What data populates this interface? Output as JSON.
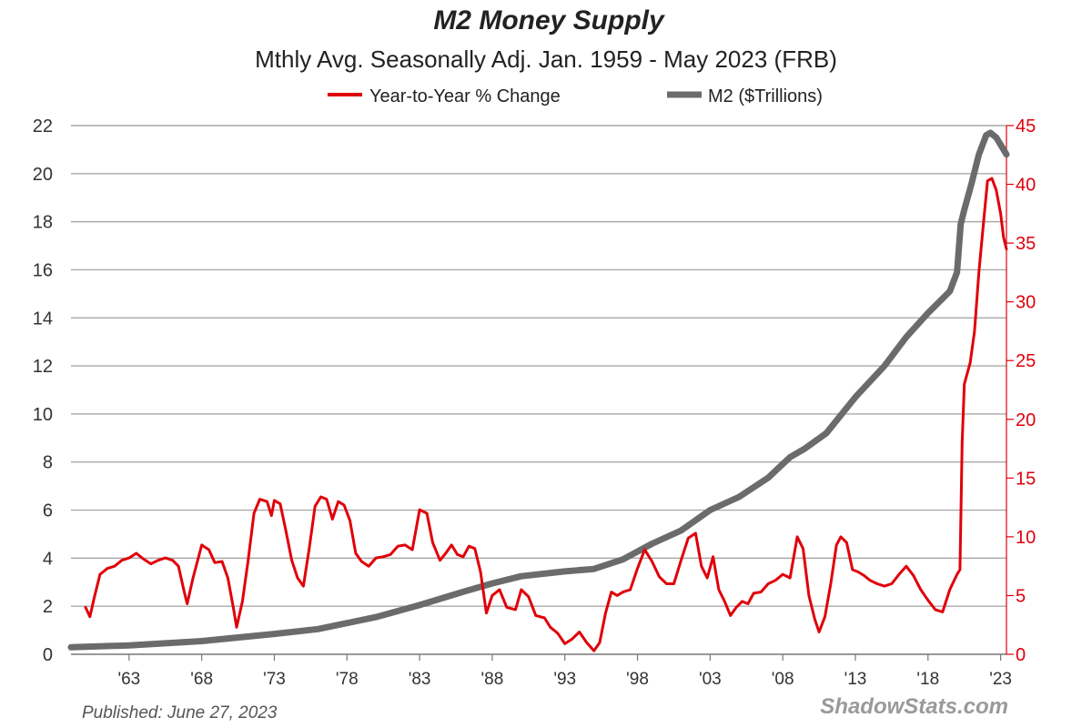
{
  "chart_data": {
    "type": "line",
    "title": "M2 Money Supply",
    "subtitle": "Mthly Avg. Seasonally Adj. Jan. 1959 - May 2023  (FRB)",
    "legend": {
      "placement": "top-center",
      "entries": [
        "Year-to-Year % Change",
        "M2 ($Trillions)"
      ]
    },
    "grid": true,
    "x_tick_labels": [
      "'63",
      "'68",
      "'73",
      "'78",
      "'83",
      "'88",
      "'93",
      "'98",
      "'03",
      "'08",
      "'13",
      "'18",
      "'23"
    ],
    "x_tick_years": [
      1963,
      1968,
      1973,
      1978,
      1983,
      1988,
      1993,
      1998,
      2003,
      2008,
      2013,
      2018,
      2023
    ],
    "xlim": [
      1959.0,
      2023.4
    ],
    "left_axis": {
      "ylim": [
        0,
        22
      ],
      "ticks": [
        "0",
        "2",
        "4",
        "6",
        "8",
        "10",
        "12",
        "14",
        "16",
        "18",
        "20",
        "22"
      ]
    },
    "right_axis": {
      "ylim": [
        0,
        45
      ],
      "ticks": [
        "0",
        "5",
        "10",
        "15",
        "20",
        "25",
        "30",
        "35",
        "40",
        "45"
      ],
      "color": "#e0000a"
    },
    "series": [
      {
        "name": "Year-to-Year % Change",
        "axis": "right",
        "color": "#e0000a",
        "points": [
          [
            1960.0,
            4.0
          ],
          [
            1960.3,
            3.2
          ],
          [
            1960.6,
            4.8
          ],
          [
            1961.0,
            6.8
          ],
          [
            1961.5,
            7.3
          ],
          [
            1962.0,
            7.5
          ],
          [
            1962.5,
            8.0
          ],
          [
            1963.0,
            8.2
          ],
          [
            1963.5,
            8.6
          ],
          [
            1964.0,
            8.1
          ],
          [
            1964.5,
            7.7
          ],
          [
            1965.0,
            8.0
          ],
          [
            1965.5,
            8.2
          ],
          [
            1966.0,
            8.0
          ],
          [
            1966.4,
            7.5
          ],
          [
            1966.8,
            5.3
          ],
          [
            1967.0,
            4.3
          ],
          [
            1967.4,
            6.5
          ],
          [
            1968.0,
            9.3
          ],
          [
            1968.5,
            8.9
          ],
          [
            1968.9,
            7.8
          ],
          [
            1969.4,
            7.9
          ],
          [
            1969.8,
            6.5
          ],
          [
            1970.2,
            3.8
          ],
          [
            1970.4,
            2.3
          ],
          [
            1970.8,
            4.5
          ],
          [
            1971.2,
            8.0
          ],
          [
            1971.6,
            12.0
          ],
          [
            1972.0,
            13.2
          ],
          [
            1972.5,
            13.0
          ],
          [
            1972.8,
            11.8
          ],
          [
            1973.0,
            13.1
          ],
          [
            1973.4,
            12.8
          ],
          [
            1973.8,
            10.5
          ],
          [
            1974.2,
            8.0
          ],
          [
            1974.6,
            6.5
          ],
          [
            1975.0,
            5.8
          ],
          [
            1975.4,
            9.0
          ],
          [
            1975.8,
            12.6
          ],
          [
            1976.2,
            13.4
          ],
          [
            1976.6,
            13.2
          ],
          [
            1977.0,
            11.5
          ],
          [
            1977.4,
            13.0
          ],
          [
            1977.8,
            12.7
          ],
          [
            1978.2,
            11.4
          ],
          [
            1978.6,
            8.6
          ],
          [
            1979.0,
            7.9
          ],
          [
            1979.5,
            7.5
          ],
          [
            1980.0,
            8.2
          ],
          [
            1980.5,
            8.3
          ],
          [
            1981.0,
            8.5
          ],
          [
            1981.5,
            9.2
          ],
          [
            1982.0,
            9.3
          ],
          [
            1982.5,
            8.9
          ],
          [
            1983.0,
            12.3
          ],
          [
            1983.5,
            12.0
          ],
          [
            1983.9,
            9.5
          ],
          [
            1984.4,
            8.0
          ],
          [
            1984.8,
            8.6
          ],
          [
            1985.2,
            9.3
          ],
          [
            1985.6,
            8.5
          ],
          [
            1986.0,
            8.3
          ],
          [
            1986.4,
            9.2
          ],
          [
            1986.8,
            9.0
          ],
          [
            1987.2,
            7.0
          ],
          [
            1987.6,
            3.5
          ],
          [
            1988.0,
            5.0
          ],
          [
            1988.5,
            5.5
          ],
          [
            1989.0,
            4.0
          ],
          [
            1989.6,
            3.8
          ],
          [
            1990.0,
            5.5
          ],
          [
            1990.5,
            4.9
          ],
          [
            1991.0,
            3.3
          ],
          [
            1991.6,
            3.1
          ],
          [
            1992.0,
            2.3
          ],
          [
            1992.5,
            1.8
          ],
          [
            1993.0,
            0.9
          ],
          [
            1993.5,
            1.3
          ],
          [
            1994.0,
            1.9
          ],
          [
            1994.5,
            1.0
          ],
          [
            1995.0,
            0.3
          ],
          [
            1995.4,
            1.0
          ],
          [
            1995.8,
            3.5
          ],
          [
            1996.2,
            5.3
          ],
          [
            1996.6,
            5.0
          ],
          [
            1997.0,
            5.3
          ],
          [
            1997.5,
            5.5
          ],
          [
            1998.0,
            7.3
          ],
          [
            1998.5,
            8.9
          ],
          [
            1999.0,
            7.9
          ],
          [
            1999.5,
            6.6
          ],
          [
            2000.0,
            6.0
          ],
          [
            2000.5,
            6.0
          ],
          [
            2001.0,
            8.0
          ],
          [
            2001.5,
            9.9
          ],
          [
            2002.0,
            10.3
          ],
          [
            2002.4,
            7.5
          ],
          [
            2002.8,
            6.5
          ],
          [
            2003.2,
            8.3
          ],
          [
            2003.6,
            5.5
          ],
          [
            2004.0,
            4.5
          ],
          [
            2004.4,
            3.3
          ],
          [
            2004.8,
            4.0
          ],
          [
            2005.2,
            4.5
          ],
          [
            2005.6,
            4.3
          ],
          [
            2006.0,
            5.2
          ],
          [
            2006.5,
            5.3
          ],
          [
            2007.0,
            6.0
          ],
          [
            2007.5,
            6.3
          ],
          [
            2008.0,
            6.8
          ],
          [
            2008.5,
            6.5
          ],
          [
            2009.0,
            10.0
          ],
          [
            2009.4,
            9.0
          ],
          [
            2009.8,
            5.0
          ],
          [
            2010.2,
            3.0
          ],
          [
            2010.5,
            1.9
          ],
          [
            2010.9,
            3.2
          ],
          [
            2011.3,
            6.0
          ],
          [
            2011.7,
            9.3
          ],
          [
            2012.0,
            10.0
          ],
          [
            2012.4,
            9.5
          ],
          [
            2012.8,
            7.2
          ],
          [
            2013.2,
            7.0
          ],
          [
            2013.6,
            6.7
          ],
          [
            2014.0,
            6.3
          ],
          [
            2014.5,
            6.0
          ],
          [
            2015.0,
            5.8
          ],
          [
            2015.5,
            6.0
          ],
          [
            2016.0,
            6.8
          ],
          [
            2016.5,
            7.5
          ],
          [
            2017.0,
            6.7
          ],
          [
            2017.5,
            5.5
          ],
          [
            2018.0,
            4.6
          ],
          [
            2018.5,
            3.8
          ],
          [
            2019.0,
            3.6
          ],
          [
            2019.5,
            5.5
          ],
          [
            2020.0,
            6.8
          ],
          [
            2020.2,
            7.2
          ],
          [
            2020.35,
            18.0
          ],
          [
            2020.5,
            23.0
          ],
          [
            2020.9,
            24.8
          ],
          [
            2021.2,
            27.5
          ],
          [
            2021.5,
            32.5
          ],
          [
            2021.8,
            36.5
          ],
          [
            2022.1,
            40.3
          ],
          [
            2022.4,
            40.5
          ],
          [
            2022.7,
            39.5
          ],
          [
            2023.0,
            37.5
          ],
          [
            2023.2,
            35.5
          ],
          [
            2023.4,
            34.5
          ]
        ]
      },
      {
        "name": "M2 ($Trillions)",
        "axis": "left",
        "color": "#6b6b6b",
        "points": [
          [
            1959.0,
            0.29
          ],
          [
            1963.0,
            0.37
          ],
          [
            1968.0,
            0.55
          ],
          [
            1973.0,
            0.85
          ],
          [
            1976.0,
            1.05
          ],
          [
            1978.0,
            1.3
          ],
          [
            1980.0,
            1.55
          ],
          [
            1983.0,
            2.05
          ],
          [
            1986.0,
            2.6
          ],
          [
            1988.0,
            2.95
          ],
          [
            1990.0,
            3.25
          ],
          [
            1993.0,
            3.45
          ],
          [
            1995.0,
            3.55
          ],
          [
            1997.0,
            3.95
          ],
          [
            1999.0,
            4.6
          ],
          [
            2001.0,
            5.15
          ],
          [
            2003.0,
            6.0
          ],
          [
            2005.0,
            6.55
          ],
          [
            2007.0,
            7.35
          ],
          [
            2008.5,
            8.2
          ],
          [
            2009.5,
            8.55
          ],
          [
            2011.0,
            9.2
          ],
          [
            2013.0,
            10.7
          ],
          [
            2015.0,
            12.0
          ],
          [
            2016.5,
            13.2
          ],
          [
            2018.0,
            14.2
          ],
          [
            2019.5,
            15.1
          ],
          [
            2020.0,
            15.9
          ],
          [
            2020.25,
            17.9
          ],
          [
            2020.5,
            18.5
          ],
          [
            2021.0,
            19.6
          ],
          [
            2021.5,
            20.8
          ],
          [
            2022.0,
            21.6
          ],
          [
            2022.3,
            21.7
          ],
          [
            2022.7,
            21.5
          ],
          [
            2023.0,
            21.2
          ],
          [
            2023.4,
            20.8
          ]
        ]
      }
    ]
  },
  "footer": {
    "published": "Published: June 27, 2023",
    "brand": "ShadowStats.com"
  }
}
